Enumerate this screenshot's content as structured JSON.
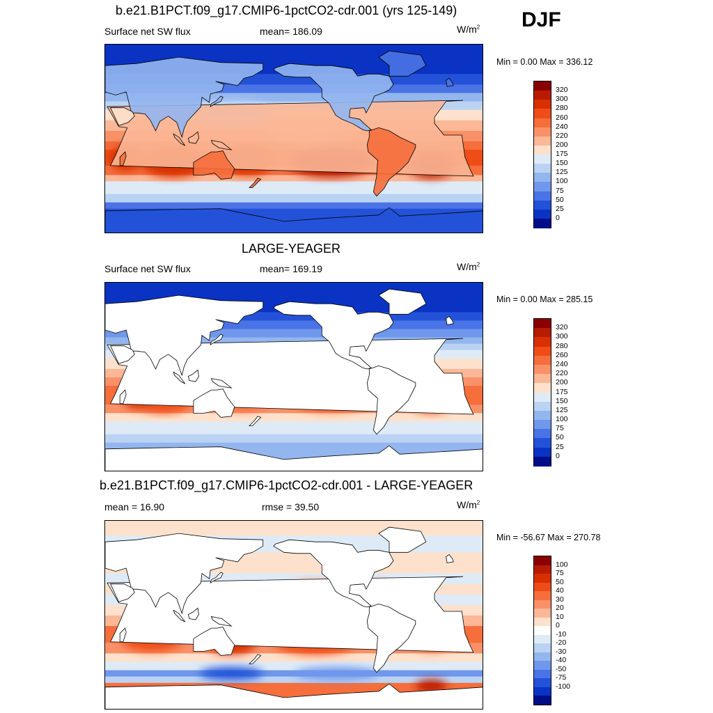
{
  "season": "DJF",
  "panels": [
    {
      "title": "b.e21.B1PCT.f09_g17.CMIP6-1pctCO2-cdr.001 (yrs 125-149)",
      "left_label": "Surface net SW flux",
      "center_label": "mean= 186.09",
      "units_base": "W/m",
      "units_exp": "2",
      "minmax": "Min =   0.00 Max = 336.12",
      "land_masked": false,
      "colorbar": {
        "labels": [
          "320",
          "300",
          "280",
          "260",
          "240",
          "220",
          "200",
          "175",
          "150",
          "125",
          "100",
          "75",
          "50",
          "25",
          "0"
        ],
        "colors": [
          "#8b0000",
          "#b81c00",
          "#d83000",
          "#ee4d17",
          "#f56e3c",
          "#f99168",
          "#fbb796",
          "#fde1cc",
          "#deebf7",
          "#bbd3f3",
          "#93b6ef",
          "#6f97eb",
          "#4a73e6",
          "#2352d8",
          "#0a33c4",
          "#000d87"
        ]
      }
    },
    {
      "title": "LARGE-YEAGER",
      "left_label": "Surface net SW flux",
      "center_label": "mean= 169.19",
      "units_base": "W/m",
      "units_exp": "2",
      "minmax": "Min =   0.00 Max = 285.15",
      "land_masked": true,
      "colorbar": {
        "labels": [
          "320",
          "300",
          "280",
          "260",
          "240",
          "220",
          "200",
          "175",
          "150",
          "125",
          "100",
          "75",
          "50",
          "25",
          "0"
        ],
        "colors": [
          "#8b0000",
          "#b81c00",
          "#d83000",
          "#ee4d17",
          "#f56e3c",
          "#f99168",
          "#fbb796",
          "#fde1cc",
          "#deebf7",
          "#bbd3f3",
          "#93b6ef",
          "#6f97eb",
          "#4a73e6",
          "#2352d8",
          "#0a33c4",
          "#000d87"
        ]
      }
    },
    {
      "title": "b.e21.B1PCT.f09_g17.CMIP6-1pctCO2-cdr.001 - LARGE-YEAGER",
      "left_label": "mean =  16.90",
      "center_label": "rmse =  39.50",
      "units_base": "W/m",
      "units_exp": "2",
      "minmax": "Min = -56.67 Max = 270.78",
      "land_masked": true,
      "colorbar": {
        "labels": [
          "100",
          "75",
          "50",
          "40",
          "30",
          "20",
          "10",
          "0",
          "-10",
          "-20",
          "-30",
          "-40",
          "-50",
          "-75",
          "-100"
        ],
        "colors": [
          "#8b0000",
          "#b81c00",
          "#d83000",
          "#ee4d17",
          "#f56e3c",
          "#f99168",
          "#fbb796",
          "#fde1cc",
          "#ffffff",
          "#deebf7",
          "#bbd3f3",
          "#93b6ef",
          "#6f97eb",
          "#4a73e6",
          "#2352d8",
          "#0a33c4",
          "#000d87"
        ]
      }
    }
  ]
}
